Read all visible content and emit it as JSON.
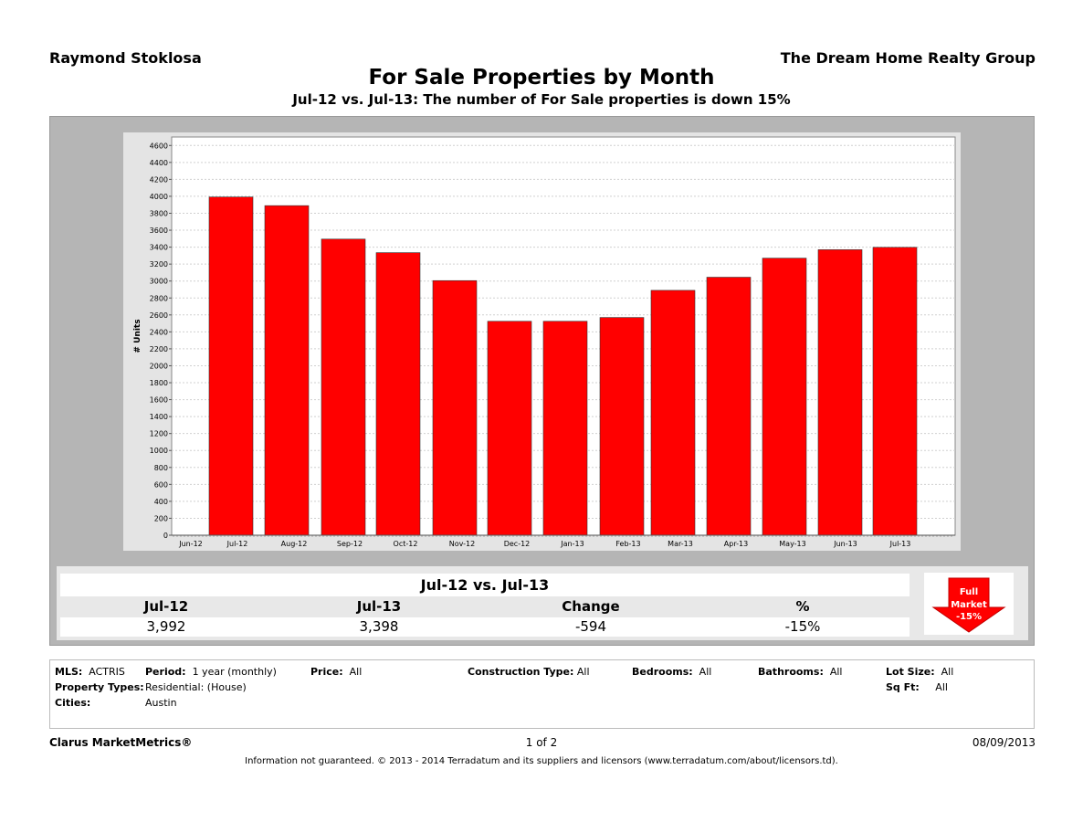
{
  "header": {
    "agent": "Raymond Stoklosa",
    "company": "The Dream Home Realty Group",
    "title": "For Sale Properties by Month",
    "subtitle": "Jul-12 vs. Jul-13: The number of For Sale properties is down 15%"
  },
  "chart_data": {
    "type": "bar",
    "ylabel": "# Units",
    "xlabel": "",
    "ylim": [
      0,
      4700
    ],
    "ytick_step": 200,
    "bar_color": "#ff0000",
    "grid": true,
    "x_ticks": [
      "Jun-12",
      "Jul-12",
      "Aug-12",
      "Sep-12",
      "Oct-12",
      "Nov-12",
      "Dec-12",
      "Jan-13",
      "Feb-13",
      "Mar-13",
      "Apr-13",
      "May-13",
      "Jun-13",
      "Jul-13"
    ],
    "categories": [
      "Jul-12",
      "Aug-12",
      "Sep-12",
      "Oct-12",
      "Nov-12",
      "Dec-12",
      "Jan-13",
      "Feb-13",
      "Mar-13",
      "Apr-13",
      "May-13",
      "Jun-13",
      "Jul-13"
    ],
    "values": [
      3992,
      3890,
      3495,
      3335,
      3005,
      2525,
      2525,
      2570,
      2890,
      3045,
      3270,
      3370,
      3398
    ]
  },
  "summary": {
    "title": "Jul-12 vs. Jul-13",
    "headers": [
      "Jul-12",
      "Jul-13",
      "Change",
      "%"
    ],
    "values": [
      "3,992",
      "3,398",
      "-594",
      "-15%"
    ],
    "badge": {
      "line1": "Full",
      "line2": "Market",
      "line3": "-15%",
      "color": "#ff0000"
    }
  },
  "criteria": {
    "mls_label": "MLS:",
    "mls_value": "ACTRIS",
    "property_types_label": "Property Types:",
    "cities_label": "Cities:",
    "cities_value": "Austin",
    "period_label": "Period:",
    "period_value": "1 year (monthly)",
    "property_types_value": "Residential: (House)",
    "price_label": "Price:",
    "price_value": "All",
    "construction_label": "Construction Type:",
    "construction_value": "All",
    "bedrooms_label": "Bedrooms:",
    "bedrooms_value": "All",
    "bathrooms_label": "Bathrooms:",
    "bathrooms_value": "All",
    "lot_size_label": "Lot Size:",
    "lot_size_value": "All",
    "sqft_label": "Sq Ft:",
    "sqft_value": "All"
  },
  "footer": {
    "brand": "Clarus MarketMetrics®",
    "page": "1 of 2",
    "date": "08/09/2013",
    "disclaimer": "Information not guaranteed.  © 2013 - 2014 Terradatum and its suppliers and licensors (www.terradatum.com/about/licensors.td)."
  }
}
